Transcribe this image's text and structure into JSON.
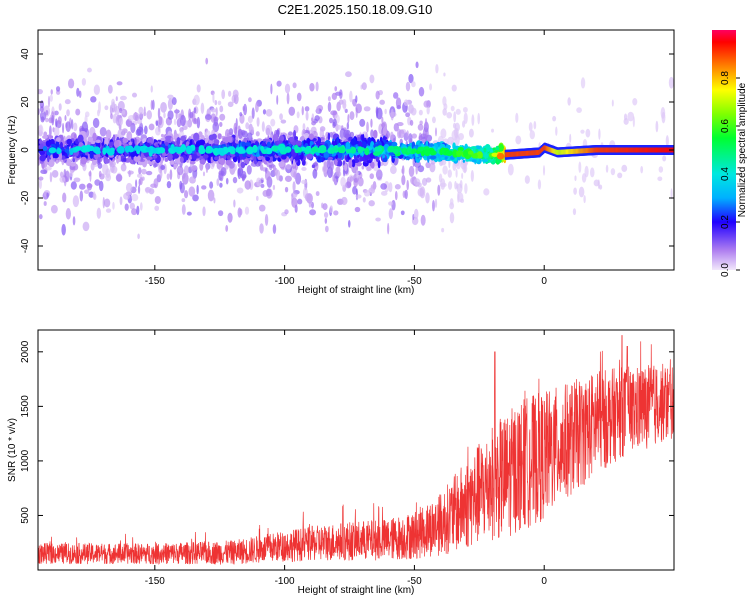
{
  "title": "C2E1.2025.150.18.09.G10",
  "chart_data": [
    {
      "type": "heatmap",
      "xlabel": "Height of straight line (km)",
      "ylabel": "Frequency (Hz)",
      "xlim": [
        -195,
        50
      ],
      "ylim": [
        -50,
        50
      ],
      "xticks": [
        -150,
        -100,
        -50,
        0
      ],
      "yticks": [
        -40,
        -20,
        0,
        20,
        40
      ],
      "colorbar": {
        "label": "Normalized spectral amplitude",
        "range": [
          0,
          1
        ],
        "ticks": [
          "0.0",
          "0.2",
          "0.4",
          "0.6",
          "0.8"
        ]
      },
      "ridge": [
        {
          "x": -190,
          "y": 0,
          "amp": 0.3
        },
        {
          "x": -150,
          "y": 0,
          "amp": 0.3
        },
        {
          "x": -100,
          "y": 0,
          "amp": 0.35
        },
        {
          "x": -60,
          "y": 0,
          "amp": 0.4
        },
        {
          "x": -20,
          "y": -2,
          "amp": 0.55
        },
        {
          "x": -15,
          "y": -2,
          "amp": 0.9
        },
        {
          "x": -2,
          "y": -1,
          "amp": 0.9
        },
        {
          "x": 0,
          "y": 1,
          "amp": 0.9
        },
        {
          "x": 5,
          "y": -1,
          "amp": 0.7
        },
        {
          "x": 20,
          "y": 0,
          "amp": 0.9
        },
        {
          "x": 50,
          "y": 0,
          "amp": 0.95
        }
      ]
    },
    {
      "type": "line",
      "xlabel": "Height of straight line (km)",
      "ylabel": "SNR (10 * v/v)",
      "xlim": [
        -195,
        50
      ],
      "ylim": [
        0,
        2200
      ],
      "xticks": [
        -150,
        -100,
        -50,
        0
      ],
      "yticks": [
        500,
        1000,
        1500,
        2000
      ],
      "color": "#ee3333",
      "envelope": {
        "x": [
          -195,
          -150,
          -120,
          -100,
          -80,
          -60,
          -50,
          -40,
          -30,
          -20,
          -15,
          -10,
          -5,
          0,
          10,
          20,
          30,
          40,
          50
        ],
        "mean": [
          150,
          150,
          160,
          220,
          260,
          280,
          320,
          420,
          600,
          800,
          850,
          950,
          1000,
          1050,
          1200,
          1350,
          1450,
          1500,
          1550
        ],
        "spread": [
          60,
          60,
          70,
          90,
          110,
          120,
          140,
          180,
          260,
          330,
          360,
          380,
          380,
          370,
          330,
          300,
          260,
          240,
          220
        ]
      },
      "peaks": [
        {
          "x": -19,
          "y": 2000
        },
        {
          "x": 30,
          "y": 2150
        },
        {
          "x": 32,
          "y": 2050
        }
      ]
    }
  ]
}
